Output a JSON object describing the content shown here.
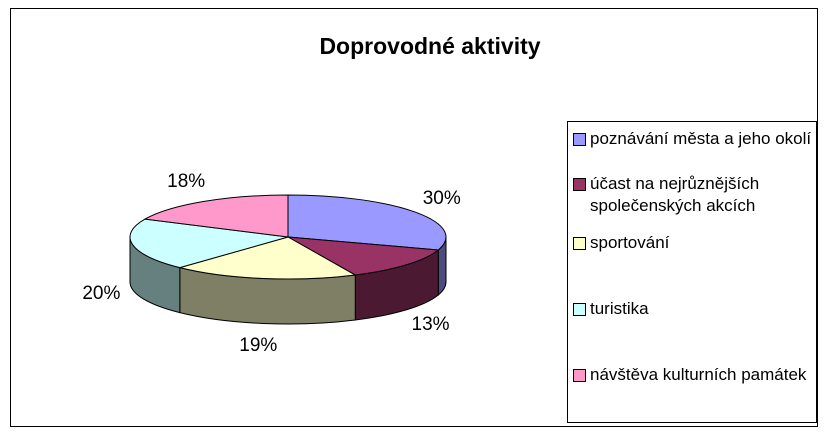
{
  "chart_data": {
    "type": "pie",
    "title": "Doprovodné aktivity",
    "categories": [
      "poznávání města a jeho okolí",
      "účast na nejrůznějších společenských akcích",
      "sportování",
      "turistika",
      "návštěva kulturních památek"
    ],
    "values": [
      30,
      13,
      19,
      20,
      18
    ],
    "value_labels": [
      "30%",
      "13%",
      "19%",
      "20%",
      "18%"
    ],
    "colors": [
      "#9999FF",
      "#993366",
      "#FFFFCC",
      "#CCFFFF",
      "#FF99CC"
    ],
    "legend": "right"
  }
}
